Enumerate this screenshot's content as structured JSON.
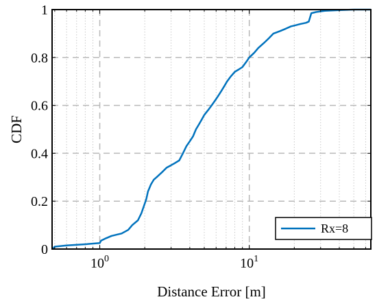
{
  "chart_data": {
    "type": "line",
    "title": "",
    "xlabel": "Distance Error [m]",
    "ylabel": "CDF",
    "xscale": "log",
    "xlim": [
      0.48,
      65
    ],
    "ylim": [
      0,
      1
    ],
    "grid": true,
    "legend_position": "bottom-right",
    "x_ticks": [
      1,
      10
    ],
    "x_tick_labels": [
      {
        "base": "10",
        "exp": "0"
      },
      {
        "base": "10",
        "exp": "1"
      }
    ],
    "y_ticks": [
      0,
      0.2,
      0.4,
      0.6,
      0.8,
      1
    ],
    "y_tick_labels": [
      "0",
      "0.2",
      "0.4",
      "0.6",
      "0.8",
      "1"
    ],
    "series": [
      {
        "name": "Rx=8",
        "color": "#0072BD",
        "x": [
          0.48,
          0.5,
          0.6,
          0.8,
          1.0,
          1.02,
          1.1,
          1.2,
          1.4,
          1.55,
          1.65,
          1.8,
          1.9,
          2.0,
          2.05,
          2.1,
          2.2,
          2.3,
          2.4,
          2.6,
          2.8,
          3.0,
          3.2,
          3.4,
          3.6,
          3.8,
          4.0,
          4.2,
          4.4,
          4.6,
          4.8,
          5.0,
          5.3,
          5.6,
          5.9,
          6.2,
          6.5,
          6.8,
          7.1,
          7.5,
          8.0,
          8.5,
          9.0,
          9.5,
          10,
          10.8,
          11.5,
          12.5,
          13.5,
          14.5,
          16,
          17.5,
          19,
          20.5,
          22,
          24,
          25,
          26,
          28,
          32,
          40,
          50,
          65
        ],
        "y": [
          0.0,
          0.01,
          0.015,
          0.02,
          0.025,
          0.035,
          0.045,
          0.055,
          0.065,
          0.08,
          0.1,
          0.12,
          0.15,
          0.19,
          0.21,
          0.24,
          0.27,
          0.29,
          0.3,
          0.32,
          0.34,
          0.35,
          0.36,
          0.37,
          0.4,
          0.43,
          0.45,
          0.47,
          0.5,
          0.52,
          0.54,
          0.56,
          0.58,
          0.6,
          0.62,
          0.64,
          0.66,
          0.68,
          0.7,
          0.72,
          0.74,
          0.75,
          0.76,
          0.78,
          0.8,
          0.82,
          0.84,
          0.86,
          0.88,
          0.9,
          0.91,
          0.92,
          0.93,
          0.935,
          0.94,
          0.945,
          0.95,
          0.985,
          0.99,
          0.995,
          0.998,
          1.0,
          1.0
        ]
      }
    ]
  }
}
